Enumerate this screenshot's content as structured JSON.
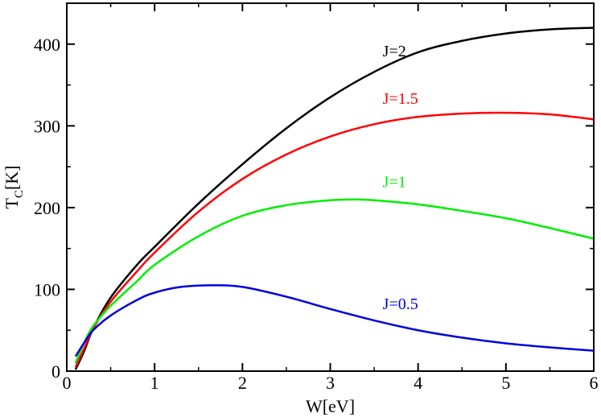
{
  "chart_data": {
    "type": "line",
    "title": "",
    "xlabel": "W[eV]",
    "ylabel": {
      "main": "T",
      "sub": "C",
      "unit": "[K]"
    },
    "xlim": [
      0,
      6
    ],
    "ylim": [
      0,
      450
    ],
    "xticks": [
      0,
      1,
      2,
      3,
      4,
      5,
      6
    ],
    "yticks": [
      0,
      100,
      200,
      300,
      400
    ],
    "grid": false,
    "series": [
      {
        "name": "J=2",
        "color": "#000000",
        "label_at": [
          4.0,
          385
        ],
        "x": [
          0.1,
          0.2,
          0.3,
          0.5,
          0.8,
          1.0,
          1.5,
          2.0,
          2.5,
          3.0,
          3.5,
          4.0,
          4.5,
          5.0,
          5.5,
          6.0
        ],
        "y": [
          2,
          25,
          52,
          90,
          130,
          152,
          205,
          253,
          297,
          335,
          366,
          390,
          404,
          413,
          418,
          420
        ]
      },
      {
        "name": "J=1.5",
        "color": "#ff0000",
        "label_at": [
          4.0,
          327
        ],
        "x": [
          0.1,
          0.2,
          0.3,
          0.5,
          0.8,
          1.0,
          1.5,
          2.0,
          2.5,
          3.0,
          3.5,
          4.0,
          4.5,
          5.0,
          5.5,
          6.0
        ],
        "y": [
          5,
          28,
          52,
          85,
          122,
          145,
          195,
          235,
          265,
          287,
          302,
          311,
          315,
          316,
          314,
          308
        ]
      },
      {
        "name": "J=1",
        "color": "#00ee00",
        "label_at": [
          4.0,
          225
        ],
        "x": [
          0.1,
          0.2,
          0.3,
          0.5,
          0.8,
          1.0,
          1.5,
          2.0,
          2.5,
          3.0,
          3.3,
          3.5,
          4.0,
          4.5,
          5.0,
          5.5,
          6.0
        ],
        "y": [
          10,
          35,
          55,
          80,
          110,
          130,
          165,
          190,
          203,
          209,
          210,
          209,
          204,
          196,
          187,
          175,
          162
        ]
      },
      {
        "name": "J=0.5",
        "color": "#0000dd",
        "label_at": [
          4.0,
          76
        ],
        "x": [
          0.1,
          0.2,
          0.3,
          0.5,
          0.8,
          1.0,
          1.3,
          1.65,
          2.0,
          2.5,
          3.0,
          3.5,
          4.0,
          4.5,
          5.0,
          5.5,
          6.0
        ],
        "y": [
          18,
          35,
          50,
          68,
          87,
          96,
          103,
          105,
          103,
          91,
          76,
          62,
          50,
          41,
          34,
          29,
          25
        ]
      }
    ]
  }
}
